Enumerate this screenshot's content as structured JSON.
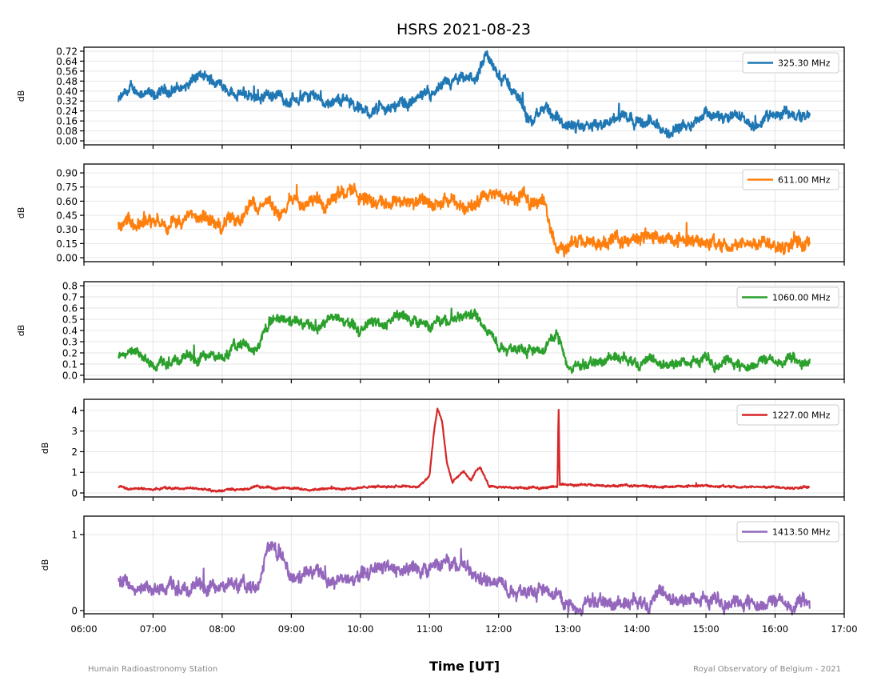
{
  "chart_data": {
    "type": "line",
    "title": "HSRS 2021-08-23",
    "xlabel": "Time [UT]",
    "xlim": [
      "06:00",
      "17:00"
    ],
    "x_ticks": [
      "06:00",
      "07:00",
      "08:00",
      "09:00",
      "10:00",
      "11:00",
      "12:00",
      "13:00",
      "14:00",
      "15:00",
      "16:00",
      "17:00"
    ],
    "grid": true,
    "legend_placement": "top-right",
    "footer_left": "Humain Radioastronomy Station",
    "footer_right": "Royal Observatory of Belgium - 2021",
    "panels": [
      {
        "name": "325.30 MHz",
        "color": "#1f77b4",
        "ylabel": "dB",
        "ylim": [
          -0.032,
          0.752
        ],
        "y_ticks": [
          "0.00",
          "0.08",
          "0.16",
          "0.24",
          "0.32",
          "0.40",
          "0.48",
          "0.56",
          "0.64",
          "0.72"
        ],
        "start": "06:30",
        "step_min": 10,
        "noise": 0.045,
        "values": [
          0.32,
          0.4,
          0.4,
          0.34,
          0.4,
          0.42,
          0.44,
          0.52,
          0.48,
          0.46,
          0.4,
          0.36,
          0.36,
          0.38,
          0.36,
          0.32,
          0.34,
          0.38,
          0.32,
          0.32,
          0.34,
          0.24,
          0.24,
          0.26,
          0.28,
          0.3,
          0.34,
          0.38,
          0.42,
          0.46,
          0.48,
          0.5,
          0.66,
          0.52,
          0.44,
          0.3,
          0.14,
          0.28,
          0.16,
          0.1,
          0.08,
          0.12,
          0.12,
          0.18,
          0.22,
          0.18,
          0.14,
          0.1,
          0.04,
          0.14,
          0.18,
          0.24,
          0.2,
          0.16,
          0.2,
          0.14,
          0.16,
          0.22,
          0.24,
          0.2,
          0.2
        ]
      },
      {
        "name": "611.00 MHz",
        "color": "#ff7f0e",
        "ylabel": "dB",
        "ylim": [
          -0.042,
          0.994
        ],
        "y_ticks": [
          "0.00",
          "0.15",
          "0.30",
          "0.45",
          "0.60",
          "0.75",
          "0.90"
        ],
        "start": "06:30",
        "step_min": 10,
        "noise": 0.07,
        "values": [
          0.38,
          0.36,
          0.35,
          0.38,
          0.4,
          0.38,
          0.42,
          0.4,
          0.38,
          0.36,
          0.4,
          0.5,
          0.55,
          0.62,
          0.4,
          0.65,
          0.62,
          0.65,
          0.6,
          0.72,
          0.7,
          0.68,
          0.6,
          0.62,
          0.6,
          0.62,
          0.58,
          0.6,
          0.58,
          0.56,
          0.55,
          0.6,
          0.62,
          0.65,
          0.62,
          0.65,
          0.62,
          0.58,
          0.1,
          0.12,
          0.14,
          0.16,
          0.16,
          0.18,
          0.18,
          0.2,
          0.3,
          0.2,
          0.18,
          0.18,
          0.16,
          0.2,
          0.14,
          0.14,
          0.16,
          0.16,
          0.18,
          0.18,
          0.16,
          0.14,
          0.14
        ]
      },
      {
        "name": "1060.00 MHz",
        "color": "#2ca02c",
        "ylabel": "dB",
        "ylim": [
          -0.036,
          0.836
        ],
        "y_ticks": [
          "0.0",
          "0.1",
          "0.2",
          "0.3",
          "0.4",
          "0.5",
          "0.6",
          "0.7",
          "0.8"
        ],
        "start": "06:30",
        "step_min": 10,
        "noise": 0.045,
        "values": [
          0.18,
          0.22,
          0.16,
          0.08,
          0.1,
          0.14,
          0.16,
          0.12,
          0.18,
          0.14,
          0.24,
          0.28,
          0.22,
          0.46,
          0.5,
          0.48,
          0.45,
          0.42,
          0.5,
          0.52,
          0.48,
          0.4,
          0.5,
          0.45,
          0.55,
          0.5,
          0.48,
          0.42,
          0.48,
          0.5,
          0.54,
          0.55,
          0.38,
          0.28,
          0.25,
          0.26,
          0.22,
          0.25,
          0.4,
          0.12,
          0.08,
          0.1,
          0.12,
          0.18,
          0.16,
          0.14,
          0.1,
          0.08,
          0.1,
          0.12,
          0.12,
          0.16,
          0.1,
          0.14,
          0.08,
          0.12,
          0.14,
          0.12,
          0.16,
          0.1,
          0.12
        ]
      },
      {
        "name": "1227.00 MHz",
        "color": "#d62728",
        "ylabel": "dB",
        "ylim": [
          -0.194,
          4.54
        ],
        "y_ticks": [
          "0",
          "1",
          "2",
          "3",
          "4"
        ],
        "noise": 0.05,
        "points": [
          [
            "06:30",
            0.25
          ],
          [
            "07:00",
            0.2
          ],
          [
            "07:30",
            0.25
          ],
          [
            "08:00",
            0.1
          ],
          [
            "08:30",
            0.3
          ],
          [
            "09:00",
            0.2
          ],
          [
            "09:30",
            0.2
          ],
          [
            "10:00",
            0.25
          ],
          [
            "10:30",
            0.35
          ],
          [
            "10:50",
            0.3
          ],
          [
            "11:00",
            0.8
          ],
          [
            "11:04",
            3.0
          ],
          [
            "11:07",
            4.1
          ],
          [
            "11:11",
            3.5
          ],
          [
            "11:15",
            1.5
          ],
          [
            "11:20",
            0.5
          ],
          [
            "11:25",
            0.8
          ],
          [
            "11:30",
            1.0
          ],
          [
            "11:36",
            0.6
          ],
          [
            "11:40",
            1.1
          ],
          [
            "11:44",
            1.25
          ],
          [
            "11:48",
            0.8
          ],
          [
            "11:52",
            0.3
          ],
          [
            "12:00",
            0.25
          ],
          [
            "12:30",
            0.25
          ],
          [
            "12:51",
            0.3
          ],
          [
            "12:52",
            4.3
          ],
          [
            "12:53",
            0.45
          ],
          [
            "13:00",
            0.4
          ],
          [
            "13:30",
            0.35
          ],
          [
            "14:00",
            0.35
          ],
          [
            "14:30",
            0.3
          ],
          [
            "15:00",
            0.35
          ],
          [
            "15:30",
            0.3
          ],
          [
            "16:00",
            0.3
          ],
          [
            "16:30",
            0.25
          ]
        ]
      },
      {
        "name": "1413.50 MHz",
        "color": "#9467bd",
        "ylabel": "dB",
        "ylim": [
          -0.042,
          1.242
        ],
        "y_ticks": [
          "0",
          "1"
        ],
        "start": "06:30",
        "step_min": 10,
        "noise": 0.09,
        "values": [
          0.45,
          0.32,
          0.28,
          0.24,
          0.3,
          0.3,
          0.28,
          0.32,
          0.25,
          0.3,
          0.35,
          0.3,
          0.28,
          0.85,
          0.75,
          0.4,
          0.45,
          0.5,
          0.45,
          0.4,
          0.42,
          0.48,
          0.55,
          0.6,
          0.58,
          0.55,
          0.52,
          0.55,
          0.6,
          0.6,
          0.62,
          0.45,
          0.4,
          0.35,
          0.3,
          0.28,
          0.3,
          0.28,
          0.25,
          0.1,
          0.1,
          0.12,
          0.1,
          0.08,
          0.12,
          0.16,
          0.14,
          0.15,
          0.12,
          0.14,
          0.16,
          0.15,
          0.14,
          0.12,
          0.1,
          0.12,
          0.14,
          0.12,
          0.1,
          0.1,
          0.06
        ]
      }
    ]
  }
}
